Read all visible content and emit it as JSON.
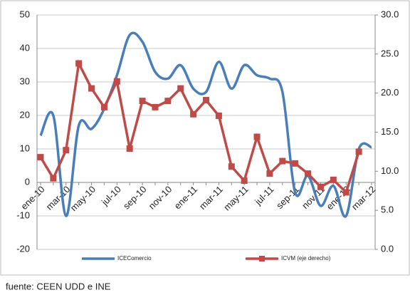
{
  "chart_data": {
    "type": "line",
    "categories": [
      "ene-10",
      null,
      "mar-10",
      null,
      "may-10",
      null,
      "jul-10",
      null,
      "sep-10",
      null,
      "nov-10",
      null,
      "ene-11",
      null,
      "mar-11",
      null,
      "may-11",
      null,
      "jul-11",
      null,
      "sep-11",
      null,
      "nov-11",
      null,
      "ene-12",
      null,
      "mar-12"
    ],
    "series": [
      {
        "name": "ICEComercio",
        "color": "#4a7ebb",
        "smooth": true,
        "values": [
          14,
          20,
          -10,
          17,
          16,
          22,
          32,
          44,
          42,
          33,
          31,
          35,
          28,
          27,
          36,
          28,
          35,
          32,
          31,
          27,
          -3,
          2,
          -7,
          -1,
          -10,
          10,
          10.5
        ]
      },
      {
        "name": "ICVM (eje derecho)",
        "color": "#be4b48",
        "axis": "y2",
        "marker": "square",
        "values": [
          11.8,
          9.1,
          12.7,
          23.8,
          20.6,
          18.2,
          21.5,
          12.9,
          19.0,
          18.2,
          19.0,
          20.6,
          17.3,
          19.1,
          17.1,
          10.6,
          8.8,
          14.4,
          9.7,
          11.3,
          11.0,
          9.7,
          8.0,
          8.9,
          7.3,
          12.5,
          null
        ]
      }
    ],
    "ylim": [
      -20,
      50
    ],
    "yticks": [
      -20,
      -10,
      0,
      10,
      20,
      30,
      40,
      50
    ],
    "y2lim": [
      0,
      30
    ],
    "y2ticks": [
      {
        "value": 0,
        "label": "0.0"
      },
      {
        "value": 5,
        "label": "5.0"
      },
      {
        "value": 10,
        "label": "10.0"
      },
      {
        "value": 15,
        "label": "15.0"
      },
      {
        "value": 20,
        "label": "20.0"
      },
      {
        "value": 25,
        "label": "25.0"
      },
      {
        "value": 30,
        "label": "30.0"
      }
    ],
    "grid": true,
    "legend": "bottom",
    "source": "fuente: CEEN UDD e INE"
  }
}
